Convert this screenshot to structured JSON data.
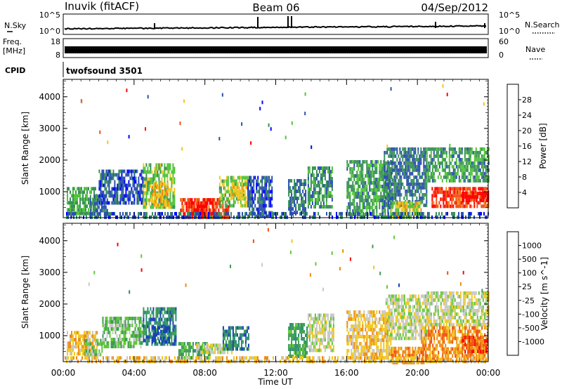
{
  "header": {
    "station": "Inuvik (fitACF)",
    "beam": "Beam 06",
    "date": "04/Sep/2012"
  },
  "status_panels": {
    "nsky_label": "N.Sky",
    "nsearch_label": "N.Search",
    "nsky_ticks": [
      "10^5",
      "10^0"
    ],
    "nsearch_ticks": [
      "10^5",
      "10^0"
    ],
    "freq_label": "Freq.",
    "freq_unit": "[MHz]",
    "freq_ticks": [
      "18",
      "8"
    ],
    "nave_label": "Nave",
    "nave_ticks": [
      "60",
      "0"
    ],
    "cpid_label": "CPID",
    "cpid_value": "twofsound 3501"
  },
  "x_axis": {
    "label": "Time UT",
    "ticks": [
      "00:00",
      "04:00",
      "08:00",
      "12:00",
      "16:00",
      "20:00",
      "00:00"
    ],
    "range_hours": [
      0,
      24
    ]
  },
  "chart_data": [
    {
      "type": "heatmap",
      "name": "power",
      "xlabel": "Time UT",
      "ylabel": "Slant Range [km]",
      "x_range_hours": [
        0,
        24
      ],
      "ylim": [
        180,
        4550
      ],
      "y_ticks": [
        1000,
        2000,
        3000,
        4000
      ],
      "colorbar": {
        "label": "Power [dB]",
        "ticks": [
          4,
          8,
          12,
          16,
          20,
          24,
          28
        ],
        "range": [
          0,
          32
        ],
        "colors": [
          "#0000ff",
          "#2a4fb0",
          "#3a8f5a",
          "#52c43a",
          "#f0c820",
          "#f08c10",
          "#f05010",
          "#ff0000"
        ]
      },
      "regions": [
        {
          "t": [
            0.2,
            1.9
          ],
          "r": [
            350,
            1150
          ],
          "level": 12
        },
        {
          "t": [
            1.5,
            2.5
          ],
          "r": [
            300,
            900
          ],
          "level": 8
        },
        {
          "t": [
            2.0,
            4.5
          ],
          "r": [
            600,
            1700
          ],
          "level": 6
        },
        {
          "t": [
            4.5,
            6.3
          ],
          "r": [
            500,
            1900
          ],
          "level": 14
        },
        {
          "t": [
            5.0,
            5.9
          ],
          "r": [
            600,
            1300
          ],
          "level": 20
        },
        {
          "t": [
            6.6,
            9.3
          ],
          "r": [
            200,
            800
          ],
          "level": 27
        },
        {
          "t": [
            7.2,
            8.5
          ],
          "r": [
            250,
            700
          ],
          "level": 30
        },
        {
          "t": [
            8.8,
            10.6
          ],
          "r": [
            600,
            1500
          ],
          "level": 14
        },
        {
          "t": [
            9.5,
            10.4
          ],
          "r": [
            800,
            1300
          ],
          "level": 18
        },
        {
          "t": [
            10.4,
            11.8
          ],
          "r": [
            200,
            1500
          ],
          "level": 6
        },
        {
          "t": [
            12.7,
            13.7
          ],
          "r": [
            400,
            1400
          ],
          "level": 8
        },
        {
          "t": [
            13.8,
            15.2
          ],
          "r": [
            500,
            1800
          ],
          "level": 10
        },
        {
          "t": [
            16.0,
            18.6
          ],
          "r": [
            300,
            2000
          ],
          "level": 11
        },
        {
          "t": [
            18.1,
            20.5
          ],
          "r": [
            600,
            2400
          ],
          "level": 8
        },
        {
          "t": [
            18.5,
            20.2
          ],
          "r": [
            200,
            700
          ],
          "level": 17
        },
        {
          "t": [
            20.5,
            24.0
          ],
          "r": [
            1300,
            2400
          ],
          "level": 11
        },
        {
          "t": [
            20.8,
            24.0
          ],
          "r": [
            550,
            1150
          ],
          "level": 27
        },
        {
          "t": [
            22.5,
            24.0
          ],
          "r": [
            700,
            1000
          ],
          "level": 31
        },
        {
          "t": [
            0.0,
            24.0
          ],
          "r": [
            180,
            360
          ],
          "level": 7
        }
      ]
    },
    {
      "type": "heatmap",
      "name": "velocity",
      "xlabel": "Time UT",
      "ylabel": "Slant Range [km]",
      "x_range_hours": [
        0,
        24
      ],
      "ylim": [
        180,
        4550
      ],
      "y_ticks": [
        1000,
        2000,
        3000,
        4000
      ],
      "colorbar": {
        "label": "Velocity [m s^-1]",
        "ticks": [
          "1000",
          "500",
          "100",
          "25",
          "-25",
          "-100",
          "-500",
          "-1000"
        ],
        "colors": [
          "#1840b8",
          "#2a8a70",
          "#3c9d55",
          "#62c83a",
          "#c8c8c8",
          "#f0c820",
          "#f08c10",
          "#f05010",
          "#ff0000"
        ]
      },
      "regions": [
        {
          "t": [
            0.2,
            1.9
          ],
          "r": [
            400,
            1150
          ],
          "bin": 5
        },
        {
          "t": [
            1.2,
            2.2
          ],
          "r": [
            400,
            900
          ],
          "bin": 3
        },
        {
          "t": [
            2.2,
            4.5
          ],
          "r": [
            700,
            1600
          ],
          "bin": 3
        },
        {
          "t": [
            4.5,
            6.4
          ],
          "r": [
            700,
            1900
          ],
          "bin": 1
        },
        {
          "t": [
            5.0,
            6.0
          ],
          "r": [
            800,
            1300
          ],
          "bin": 0
        },
        {
          "t": [
            6.5,
            8.3
          ],
          "r": [
            300,
            800
          ],
          "bin": 2
        },
        {
          "t": [
            7.5,
            9.5
          ],
          "r": [
            450,
            750
          ],
          "bin": 4
        },
        {
          "t": [
            9.0,
            10.5
          ],
          "r": [
            600,
            1300
          ],
          "bin": 1
        },
        {
          "t": [
            12.7,
            13.8
          ],
          "r": [
            400,
            1400
          ],
          "bin": 2
        },
        {
          "t": [
            13.8,
            15.3
          ],
          "r": [
            500,
            1700
          ],
          "bin": 4
        },
        {
          "t": [
            16.0,
            18.5
          ],
          "r": [
            300,
            1800
          ],
          "bin": 5
        },
        {
          "t": [
            18.2,
            20.6
          ],
          "r": [
            900,
            2300
          ],
          "bin": 4
        },
        {
          "t": [
            18.5,
            20.4
          ],
          "r": [
            200,
            650
          ],
          "bin": 6
        },
        {
          "t": [
            20.5,
            24.0
          ],
          "r": [
            1300,
            2400
          ],
          "bin": 4
        },
        {
          "t": [
            20.2,
            24.0
          ],
          "r": [
            300,
            1300
          ],
          "bin": 6
        },
        {
          "t": [
            22.5,
            24.0
          ],
          "r": [
            500,
            1000
          ],
          "bin": 7
        },
        {
          "t": [
            0.0,
            24.0
          ],
          "r": [
            180,
            350
          ],
          "bin": 5
        }
      ]
    }
  ]
}
